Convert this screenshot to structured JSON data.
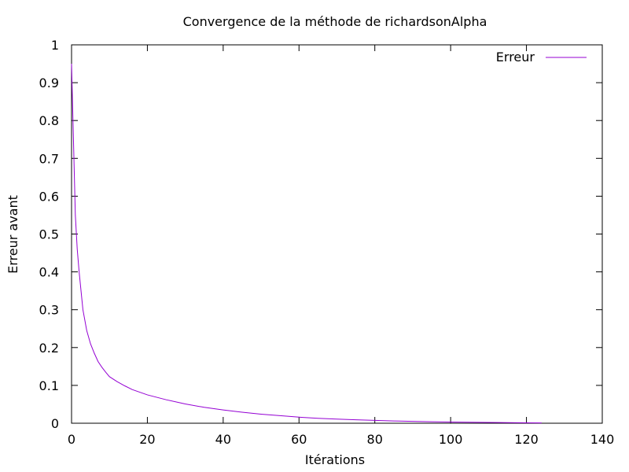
{
  "chart_data": {
    "type": "line",
    "title": "Convergence de la méthode de richardsonAlpha",
    "xlabel": "Itérations",
    "ylabel": "Erreur avant",
    "xlim": [
      0,
      140
    ],
    "ylim": [
      0,
      1
    ],
    "xticks": [
      0,
      20,
      40,
      60,
      80,
      100,
      120,
      140
    ],
    "yticks": [
      0,
      0.1,
      0.2,
      0.3,
      0.4,
      0.5,
      0.6,
      0.7,
      0.8,
      0.9,
      1
    ],
    "ytick_labels": [
      "0",
      "0.1",
      "0.2",
      "0.3",
      "0.4",
      "0.5",
      "0.6",
      "0.7",
      "0.8",
      "0.9",
      "1"
    ],
    "grid": false,
    "legend_position": "top-right",
    "series": [
      {
        "name": "Erreur",
        "color": "#9400d3",
        "x": [
          0,
          0.5,
          1,
          1.5,
          2,
          3,
          4,
          5,
          6,
          7,
          8,
          9,
          10,
          12,
          14,
          16,
          18,
          20,
          25,
          30,
          35,
          40,
          45,
          50,
          55,
          60,
          65,
          70,
          75,
          80,
          85,
          90,
          95,
          100,
          105,
          110,
          115,
          120,
          124
        ],
        "y": [
          0.95,
          0.75,
          0.55,
          0.46,
          0.4,
          0.3,
          0.245,
          0.21,
          0.185,
          0.163,
          0.148,
          0.135,
          0.123,
          0.11,
          0.099,
          0.089,
          0.082,
          0.075,
          0.062,
          0.051,
          0.042,
          0.035,
          0.029,
          0.024,
          0.02,
          0.016,
          0.013,
          0.011,
          0.009,
          0.0075,
          0.006,
          0.005,
          0.004,
          0.0032,
          0.0026,
          0.002,
          0.0015,
          0.0011,
          0.0009
        ]
      }
    ]
  }
}
